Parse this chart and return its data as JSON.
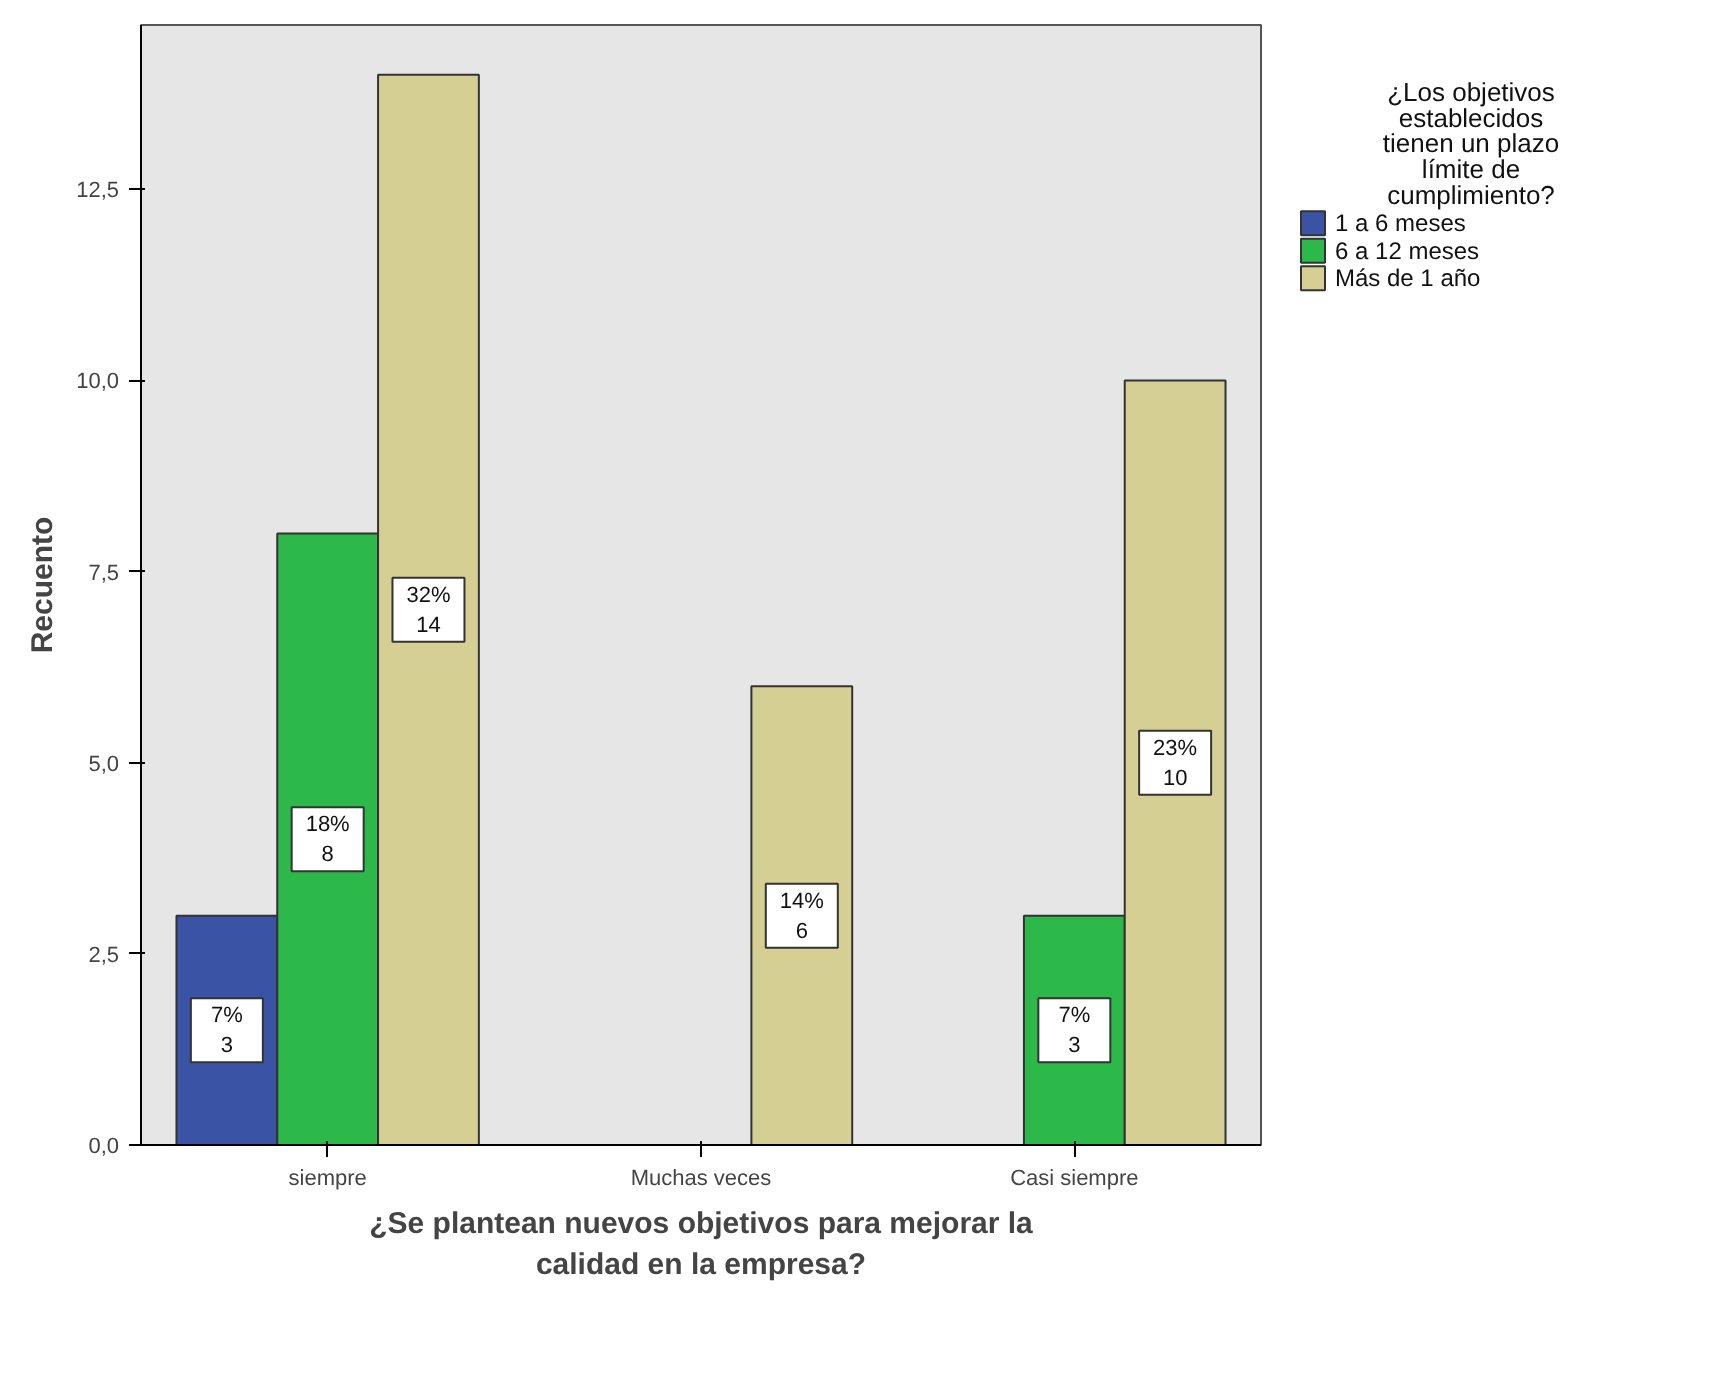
{
  "chart_data": {
    "type": "bar",
    "xlabel": "¿Se plantean nuevos objetivos para mejorar la calidad en la empresa?",
    "ylabel": "Recuento",
    "legend_title": "¿Los objetivos establecidos tienen un plazo límite de cumplimiento?",
    "categories": [
      "siempre",
      "Muchas veces",
      "Casi siempre"
    ],
    "series": [
      {
        "name": "1 a 6 meses",
        "color": "#3b53a4",
        "values": [
          3,
          null,
          null
        ],
        "value_labels": [
          "7%\n3",
          null,
          null
        ]
      },
      {
        "name": "6 a 12 meses",
        "color": "#2db84a",
        "values": [
          8,
          null,
          3
        ],
        "value_labels": [
          "18%\n8",
          null,
          "7%\n3"
        ]
      },
      {
        "name": "Más de 1 año",
        "color": "#d6cf94",
        "values": [
          14,
          6,
          10
        ],
        "value_labels": [
          "32%\n14",
          "14%\n6",
          "23%\n10"
        ]
      }
    ],
    "ylim": [
      0,
      14.65
    ],
    "yticks": [
      {
        "value": 0,
        "label": "0,0"
      },
      {
        "value": 2.5,
        "label": "2,5"
      },
      {
        "value": 5,
        "label": "5,0"
      },
      {
        "value": 7.5,
        "label": "7,5"
      },
      {
        "value": 10,
        "label": "10,0"
      },
      {
        "value": 12.5,
        "label": "12,5"
      }
    ],
    "grid": false,
    "legend": "right"
  }
}
